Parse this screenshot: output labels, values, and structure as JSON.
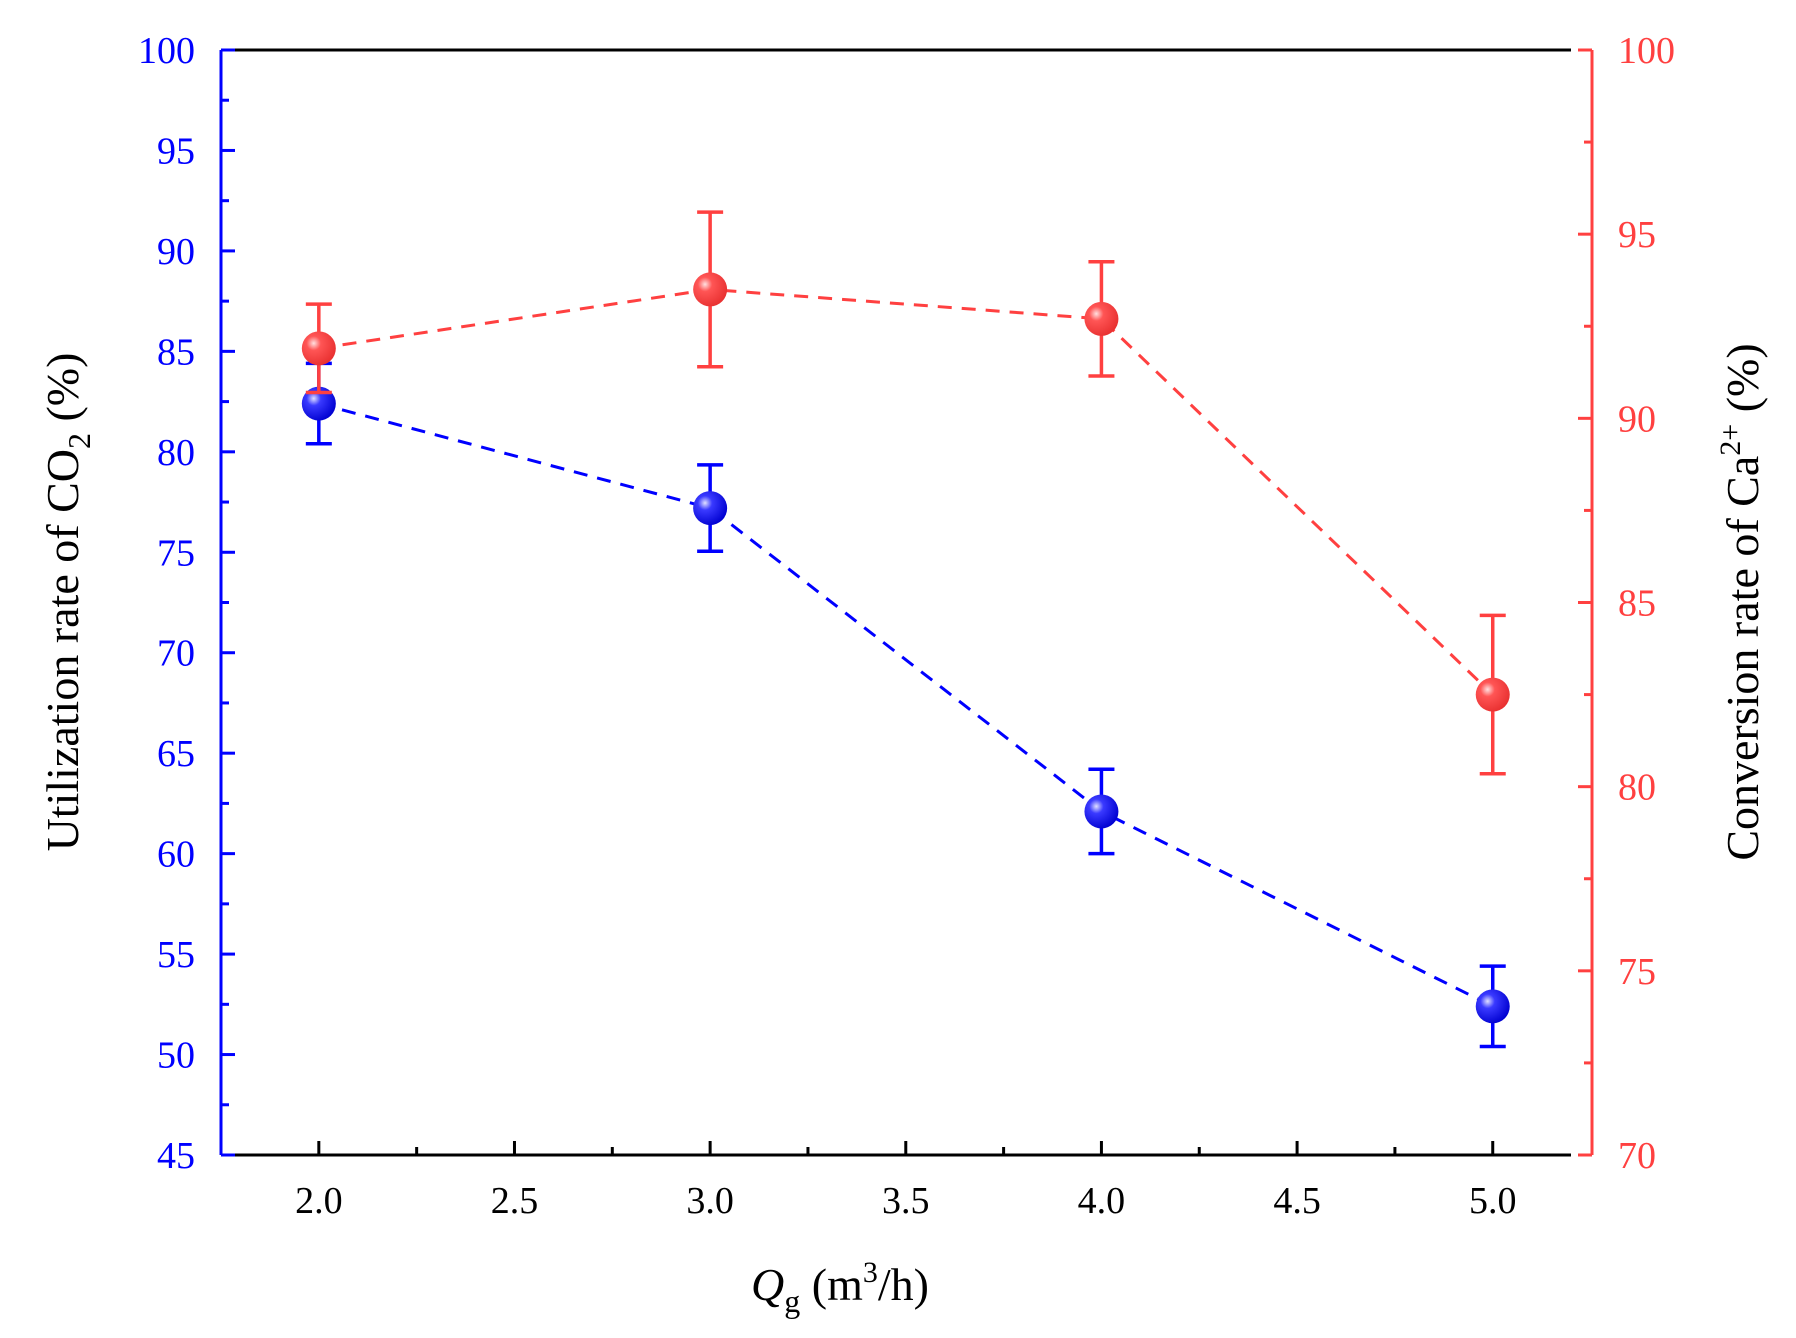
{
  "chart_data": {
    "type": "scatter",
    "x": [
      2.0,
      3.0,
      4.0,
      5.0
    ],
    "xlim": [
      1.75,
      5.2
    ],
    "xticks": [
      "2.0",
      "2.5",
      "3.0",
      "3.5",
      "4.0",
      "4.5",
      "5.0"
    ],
    "xlabel": {
      "main": "Q",
      "sub": "g",
      "rest1": " (m",
      "sup": "3",
      "rest2": "/h)"
    },
    "left_axis": {
      "label": {
        "main": "Utilization rate of CO",
        "sub": "2",
        "rest": " (%)"
      },
      "ylim": [
        45,
        100
      ],
      "ticks": [
        "45",
        "50",
        "55",
        "60",
        "65",
        "70",
        "75",
        "80",
        "85",
        "90",
        "95",
        "100"
      ],
      "color": "#0000ff"
    },
    "right_axis": {
      "label": {
        "main": "Conversion rate of Ca",
        "sup": "2+",
        "rest": " (%)"
      },
      "ylim": [
        70,
        100
      ],
      "ticks": [
        "70",
        "75",
        "80",
        "85",
        "90",
        "95",
        "100"
      ],
      "color": "#ff4040"
    },
    "series": [
      {
        "name": "Utilization rate of CO2",
        "axis": "left",
        "color": "#0000ff",
        "values": [
          82.4,
          77.2,
          62.1,
          52.4
        ],
        "errors": [
          2.0,
          2.15,
          2.1,
          2.0
        ],
        "line": "dashed"
      },
      {
        "name": "Conversion rate of Ca2+",
        "axis": "right",
        "color": "#ff4040",
        "values": [
          91.9,
          93.5,
          92.7,
          82.5
        ],
        "errors": [
          1.2,
          2.1,
          1.55,
          2.15
        ],
        "line": "dashed"
      }
    ]
  }
}
